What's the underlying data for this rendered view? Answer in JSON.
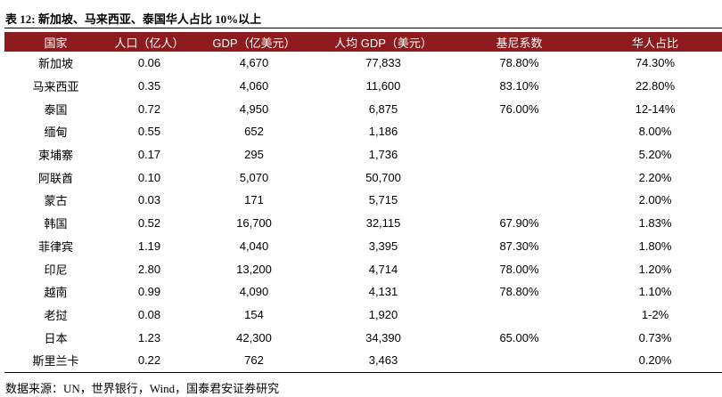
{
  "title": "表 12: 新加坡、马来西亚、泰国华人占比 10%以上",
  "table": {
    "headers": [
      "国家",
      "人口（亿人）",
      "GDP（亿美元）",
      "人均 GDP（美元）",
      "基尼系数",
      "华人占比"
    ],
    "rows": [
      [
        "新加坡",
        "0.06",
        "4,670",
        "77,833",
        "78.80%",
        "74.30%"
      ],
      [
        "马来西亚",
        "0.35",
        "4,060",
        "11,600",
        "83.10%",
        "22.80%"
      ],
      [
        "泰国",
        "0.72",
        "4,950",
        "6,875",
        "76.00%",
        "12-14%"
      ],
      [
        "缅甸",
        "0.55",
        "652",
        "1,186",
        null,
        "8.00%"
      ],
      [
        "柬埔寨",
        "0.17",
        "295",
        "1,736",
        null,
        "5.20%"
      ],
      [
        "阿联酋",
        "0.10",
        "5,070",
        "50,700",
        null,
        "2.20%"
      ],
      [
        "蒙古",
        "0.03",
        "171",
        "5,715",
        null,
        "2.00%"
      ],
      [
        "韩国",
        "0.52",
        "16,700",
        "32,115",
        "67.90%",
        "1.83%"
      ],
      [
        "菲律宾",
        "1.19",
        "4,040",
        "3,395",
        "87.30%",
        "1.80%"
      ],
      [
        "印尼",
        "2.80",
        "13,200",
        "4,714",
        "78.00%",
        "1.20%"
      ],
      [
        "越南",
        "0.99",
        "4,090",
        "4,131",
        "78.80%",
        "1.10%"
      ],
      [
        "老挝",
        "0.08",
        "154",
        "1,920",
        null,
        "1-2%"
      ],
      [
        "日本",
        "1.23",
        "42,300",
        "34,390",
        "65.00%",
        "0.73%"
      ],
      [
        "斯里兰卡",
        "0.22",
        "762",
        "3,463",
        null,
        "0.20%"
      ]
    ]
  },
  "source": "数据来源：UN，世界银行，Wind，国泰君安证券研究"
}
